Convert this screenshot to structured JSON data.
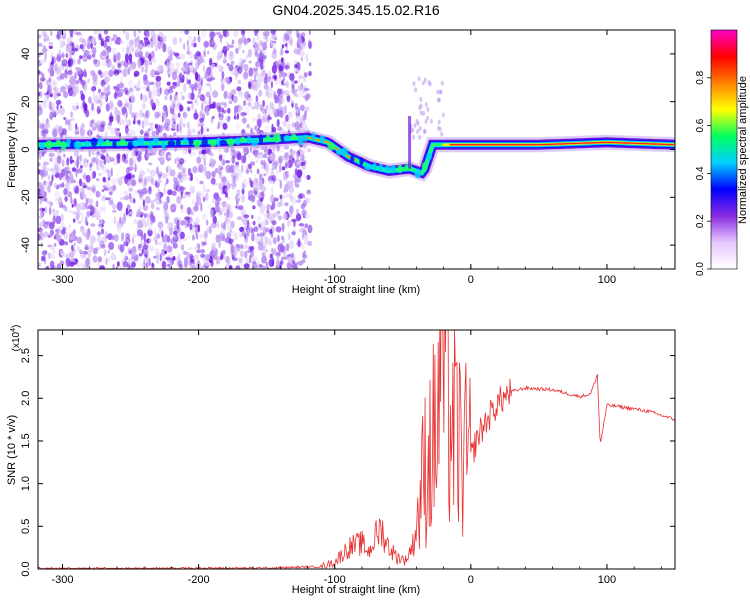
{
  "figure_title": "GN04.2025.345.15.02.R16",
  "chart_data": [
    {
      "type": "heatmap",
      "title": "GN04.2025.345.15.02.R16",
      "xlabel": "Height of straight line (km)",
      "ylabel": "Frequency (Hz)",
      "xlim": [
        -318,
        150
      ],
      "ylim": [
        -50,
        50
      ],
      "xticks": [
        -300,
        -200,
        -100,
        0,
        100
      ],
      "xtick_labels": [
        "-300",
        "-200",
        "-100",
        "0",
        "100"
      ],
      "yticks": [
        -40,
        -20,
        0,
        20,
        40
      ],
      "ytick_labels": [
        "-40",
        "-20",
        "0",
        "20",
        "40"
      ],
      "colorbar": {
        "label": "Normalized spectral amplitude",
        "range": [
          0,
          1
        ],
        "ticks": [
          0.0,
          0.2,
          0.4,
          0.6,
          0.8
        ],
        "tick_labels": [
          "0.0",
          "0.2",
          "0.4",
          "0.6",
          "0.8"
        ],
        "colors": [
          "#ffffff",
          "#e6c8ff",
          "#8a2be2",
          "#0000ff",
          "#00d0ff",
          "#00ff60",
          "#ffff00",
          "#ff8000",
          "#ff0000",
          "#ff00c8"
        ]
      },
      "ridge": {
        "x": [
          -318,
          -250,
          -200,
          -150,
          -120,
          -105,
          -90,
          -75,
          -60,
          -45,
          -35,
          -28,
          -20,
          -10,
          0,
          50,
          100,
          150
        ],
        "y": [
          2,
          2.5,
          3,
          4,
          5,
          3,
          -3,
          -7,
          -9,
          -8,
          -10,
          2,
          2,
          2,
          2,
          2,
          3,
          2
        ]
      }
    },
    {
      "type": "line",
      "xlabel": "Height of straight line (km)",
      "ylabel": "SNR (10 * v/v)",
      "y_scale_label": "(x10",
      "y_scale_exponent": "4",
      "y_scale_close": ")",
      "xlim": [
        -318,
        150
      ],
      "ylim": [
        0,
        2.8
      ],
      "xticks": [
        -300,
        -200,
        -100,
        0,
        100
      ],
      "xtick_labels": [
        "-300",
        "-200",
        "-100",
        "0",
        "100"
      ],
      "yticks": [
        0,
        0.5,
        1.0,
        1.5,
        2.0,
        2.5
      ],
      "ytick_labels": [
        "0.0",
        "0.5",
        "1.0",
        "1.5",
        "2.0",
        "2.5"
      ],
      "series": [
        {
          "name": "SNR",
          "color": "#e83030",
          "x": [
            -318,
            -250,
            -200,
            -150,
            -110,
            -100,
            -90,
            -80,
            -75,
            -70,
            -66,
            -62,
            -55,
            -48,
            -42,
            -38,
            -34,
            -30,
            -25,
            -21,
            -17,
            -12,
            -6,
            0,
            5,
            12,
            20,
            30,
            40,
            60,
            80,
            88,
            93,
            95,
            100,
            110,
            130,
            150
          ],
          "y": [
            0.0,
            0.0,
            0.01,
            0.01,
            0.03,
            0.08,
            0.25,
            0.3,
            0.2,
            0.38,
            0.48,
            0.3,
            0.15,
            0.1,
            0.3,
            0.7,
            1.2,
            1.4,
            1.6,
            2.8,
            1.9,
            1.6,
            1.35,
            1.3,
            1.55,
            1.75,
            1.95,
            2.08,
            2.12,
            2.1,
            2.02,
            2.05,
            2.28,
            1.45,
            1.92,
            1.9,
            1.85,
            1.75
          ]
        }
      ]
    }
  ]
}
